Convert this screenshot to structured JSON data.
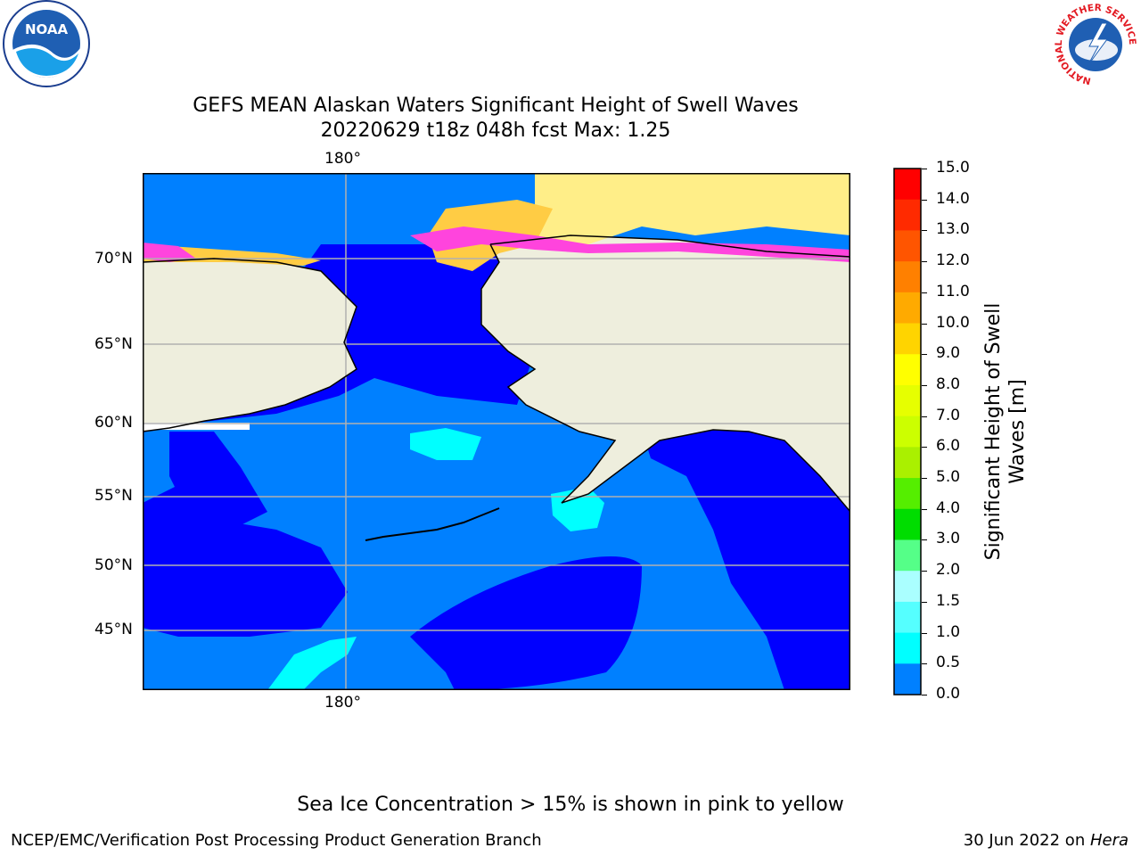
{
  "title": {
    "line1": "GEFS MEAN Alaskan Waters Significant Height of Swell Waves",
    "line2": "20220629 t18z 048h fcst   Max: 1.25"
  },
  "map": {
    "lon_label_top": "180°",
    "lon_label_bottom": "180°",
    "lat_labels": [
      "70°N",
      "65°N",
      "60°N",
      "55°N",
      "50°N",
      "45°N"
    ],
    "colors": {
      "land": "#eeeedd",
      "ocean_low": "#0000ff",
      "ocean_mid": "#0080ff",
      "ocean_high": "#00ffff",
      "ice_pink": "#ff44dd",
      "ice_orange": "#ffcc44",
      "ice_yellow": "#ffee88",
      "gridline": "#b0b0b0"
    }
  },
  "colorbar": {
    "label_line1": "Significant Height of Swell",
    "label_line2": "Waves [m]",
    "ticks": [
      "15.0",
      "14.0",
      "13.0",
      "12.0",
      "11.0",
      "10.0",
      "9.0",
      "8.0",
      "7.0",
      "6.0",
      "5.0",
      "4.0",
      "3.0",
      "2.0",
      "1.5",
      "1.0",
      "0.5",
      "0.0"
    ],
    "colors_top_to_bottom": [
      "#ff0000",
      "#ff2a00",
      "#ff5500",
      "#ff8000",
      "#ffaa00",
      "#ffd400",
      "#ffff00",
      "#e6ff00",
      "#ccff00",
      "#aaf000",
      "#55ee00",
      "#00dd00",
      "#55ff88",
      "#aaffff",
      "#55ffff",
      "#00ffff",
      "#0080ff",
      "#0000ff"
    ]
  },
  "logos": {
    "noaa_text": "NOAA",
    "nws_ring_text": "NATIONAL WEATHER SERVICE"
  },
  "note": "Sea Ice Concentration > 15% is shown in pink to yellow",
  "footer": {
    "left": "NCEP/EMC/Verification Post Processing Product Generation Branch",
    "right_prefix": "30 Jun 2022 on ",
    "right_host": "Hera"
  }
}
